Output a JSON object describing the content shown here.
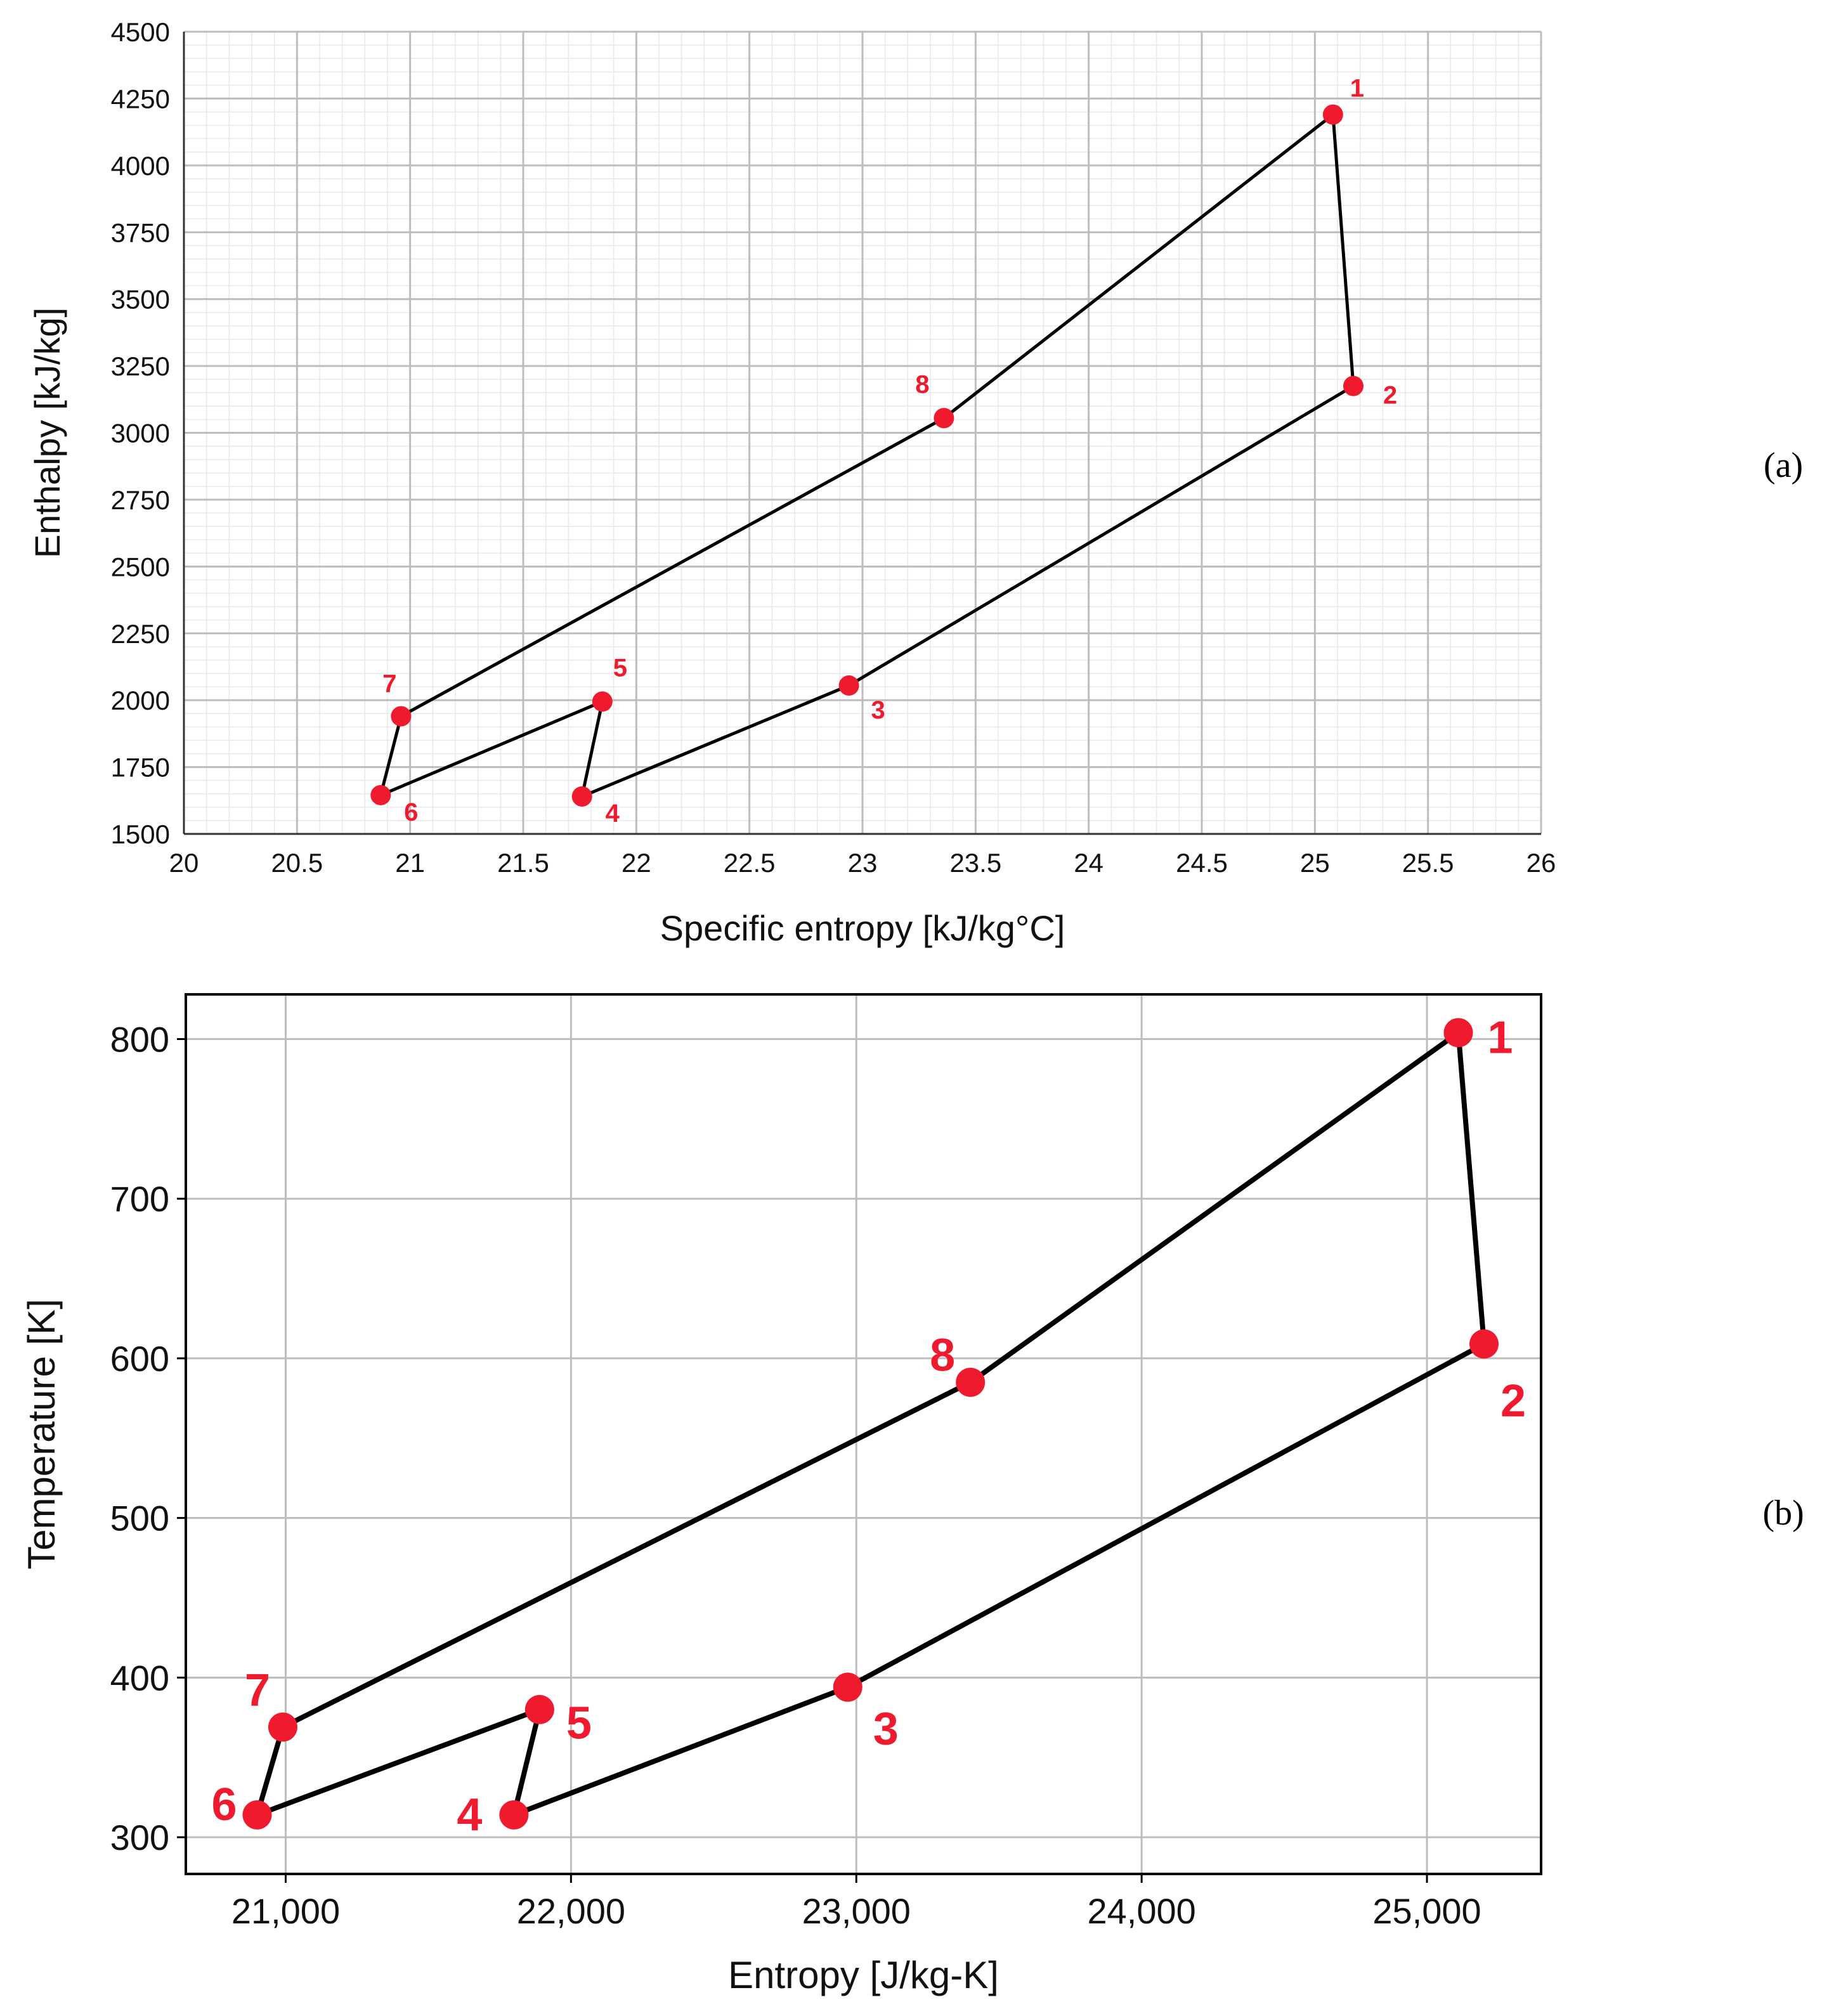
{
  "colors": {
    "point": "#ef1a2d",
    "line": "#000000",
    "label": "#ef1a2d",
    "grid_major": "#bdbdbd",
    "grid_minor": "#e8e8e8"
  },
  "chart_data": [
    {
      "type": "line",
      "panel_label": "(a)",
      "xlabel": "Specific entropy [kJ/kg°C]",
      "ylabel": "Enthalpy [kJ/kg]",
      "xlim": [
        20,
        26
      ],
      "ylim": [
        1500,
        4500
      ],
      "grid": "major and minor",
      "x_ticks": [
        "20",
        "20.5",
        "21",
        "21.5",
        "22",
        "22.5",
        "23",
        "23.5",
        "24",
        "24.5",
        "25",
        "25.5",
        "26"
      ],
      "y_ticks": [
        "1500",
        "1750",
        "2000",
        "2250",
        "2500",
        "2750",
        "3000",
        "3250",
        "3500",
        "3750",
        "4000",
        "4250",
        "4500"
      ],
      "series": [
        {
          "name": "cycle",
          "closed": true,
          "points": [
            {
              "label": "1",
              "x": 25.08,
              "y": 4190
            },
            {
              "label": "2",
              "x": 25.17,
              "y": 3175
            },
            {
              "label": "3",
              "x": 22.94,
              "y": 2055
            },
            {
              "label": "4",
              "x": 21.76,
              "y": 1640
            },
            {
              "label": "5",
              "x": 21.85,
              "y": 1995
            },
            {
              "label": "6",
              "x": 20.87,
              "y": 1645
            },
            {
              "label": "7",
              "x": 20.96,
              "y": 1940
            },
            {
              "label": "8",
              "x": 23.36,
              "y": 3055
            }
          ]
        }
      ]
    },
    {
      "type": "line",
      "panel_label": "(b)",
      "xlabel": "Entropy [J/kg-K]",
      "ylabel": "Temperature [K]",
      "xlim": [
        20650,
        25400
      ],
      "ylim": [
        277,
        828
      ],
      "grid": "major",
      "x_ticks": [
        "21,000",
        "22,000",
        "23,000",
        "24,000",
        "25,000"
      ],
      "x_tick_values": [
        21000,
        22000,
        23000,
        24000,
        25000
      ],
      "y_ticks": [
        "300",
        "400",
        "500",
        "600",
        "700",
        "800"
      ],
      "y_tick_values": [
        300,
        400,
        500,
        600,
        700,
        800
      ],
      "series": [
        {
          "name": "cycle",
          "closed": true,
          "points": [
            {
              "label": "1",
              "x": 25110,
              "y": 804
            },
            {
              "label": "2",
              "x": 25200,
              "y": 609
            },
            {
              "label": "3",
              "x": 22970,
              "y": 394
            },
            {
              "label": "4",
              "x": 21800,
              "y": 314
            },
            {
              "label": "5",
              "x": 21890,
              "y": 380
            },
            {
              "label": "6",
              "x": 20900,
              "y": 314
            },
            {
              "label": "7",
              "x": 20990,
              "y": 369
            },
            {
              "label": "8",
              "x": 23400,
              "y": 585
            }
          ]
        }
      ]
    }
  ]
}
